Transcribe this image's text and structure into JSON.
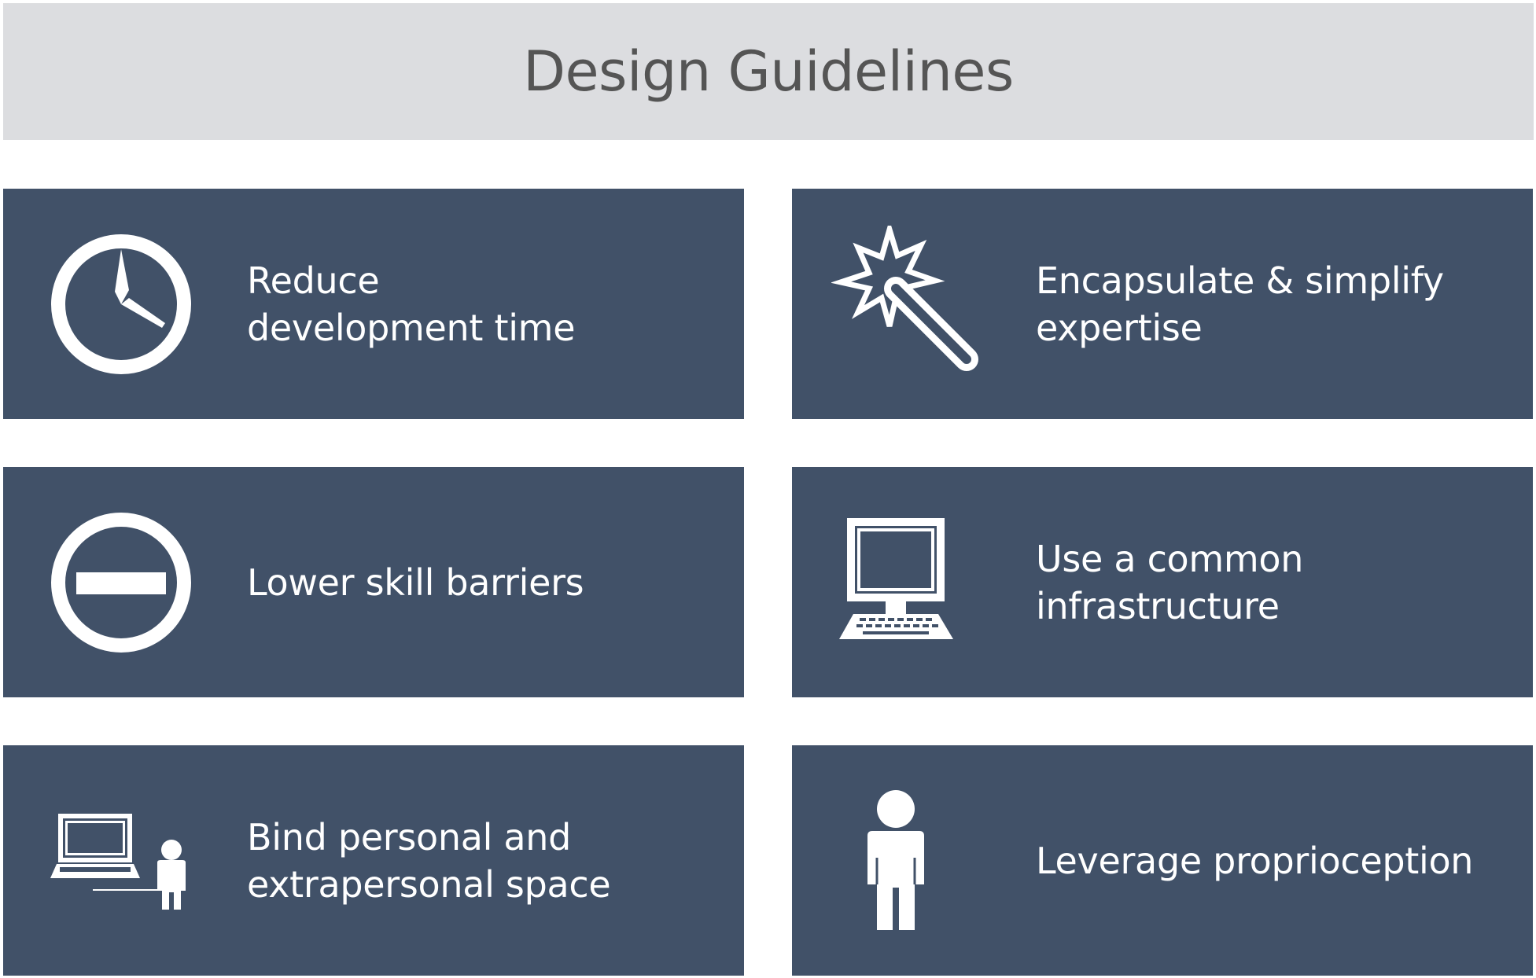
{
  "header": {
    "title": "Design Guidelines"
  },
  "cards": [
    {
      "label": "Reduce\ndevelopment time",
      "icon": "clock-icon"
    },
    {
      "label": "Encapsulate & simplify\nexpertise",
      "icon": "magic-wand-icon"
    },
    {
      "label": "Lower skill barriers",
      "icon": "minus-circle-icon"
    },
    {
      "label": "Use a common\ninfrastructure",
      "icon": "desktop-computer-icon"
    },
    {
      "label": "Bind personal and\nextrapersonal space",
      "icon": "laptop-person-icon"
    },
    {
      "label": "Leverage proprioception",
      "icon": "person-icon"
    }
  ],
  "colors": {
    "header_bg": "#dcdde0",
    "header_text": "#555555",
    "card_bg": "#415168",
    "card_text": "#ffffff"
  }
}
